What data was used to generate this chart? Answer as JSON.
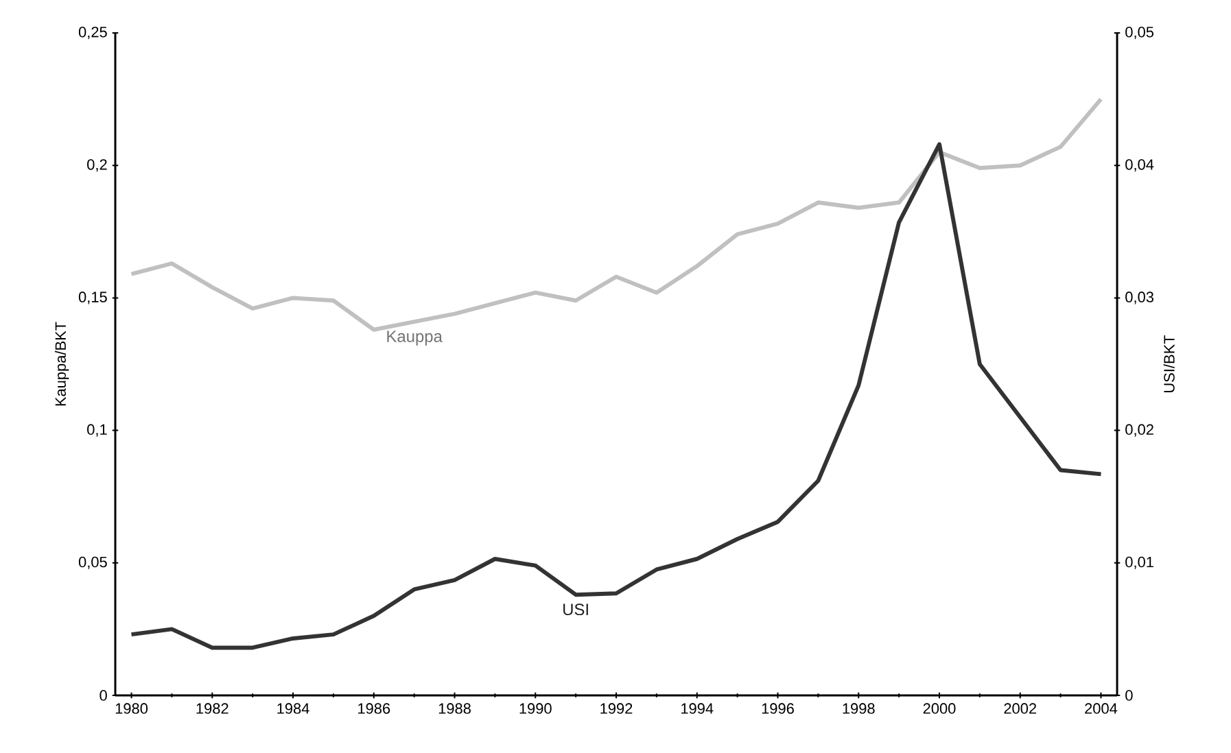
{
  "chart_data": {
    "type": "line",
    "ylabel": "Kauppa/BKT",
    "y2label": "USI/BKT",
    "x": [
      1980,
      1981,
      1982,
      1983,
      1984,
      1985,
      1986,
      1987,
      1988,
      1989,
      1990,
      1991,
      1992,
      1993,
      1994,
      1995,
      1996,
      1997,
      1998,
      1999,
      2000,
      2001,
      2002,
      2003,
      2004
    ],
    "xlim": [
      1979.6,
      2004.4
    ],
    "xticks": [
      1980,
      1982,
      1984,
      1986,
      1988,
      1990,
      1992,
      1994,
      1996,
      1998,
      2000,
      2002,
      2004
    ],
    "ylim": [
      0,
      0.25
    ],
    "yticks": [
      0,
      {
        "value": 0.05,
        "label": "0,05"
      },
      {
        "value": 0.1,
        "label": "0,1"
      },
      {
        "value": 0.15,
        "label": "0,15"
      },
      {
        "value": 0.2,
        "label": "0,2"
      },
      {
        "value": 0.25,
        "label": "0,25"
      }
    ],
    "y2lim": [
      0,
      0.05
    ],
    "y2ticks": [
      0,
      {
        "value": 0.01,
        "label": "0,01"
      },
      {
        "value": 0.02,
        "label": "0,02"
      },
      {
        "value": 0.03,
        "label": "0,03"
      },
      {
        "value": 0.04,
        "label": "0,04"
      },
      {
        "value": 0.05,
        "label": "0,05"
      }
    ],
    "grid": false,
    "legend": false,
    "marker": "none",
    "line_style": "solid",
    "series": [
      {
        "name": "Kauppa",
        "color": "#c0c0c0",
        "values": [
          0.159,
          0.163,
          0.154,
          0.146,
          0.15,
          0.149,
          0.138,
          0.141,
          0.144,
          0.148,
          0.152,
          0.149,
          0.158,
          0.152,
          0.162,
          0.174,
          0.178,
          0.186,
          0.184,
          0.186,
          0.205,
          0.199,
          0.2,
          0.207,
          0.225
        ]
      },
      {
        "name": "USI",
        "color": "#333333",
        "axis": "y2",
        "values": [
          0.0046,
          0.005,
          0.0036,
          0.0036,
          0.0043,
          0.0046,
          0.006,
          0.008,
          0.0087,
          0.0103,
          0.0098,
          0.0076,
          0.0077,
          0.0095,
          0.0103,
          0.0118,
          0.0131,
          0.0162,
          0.0234,
          0.0357,
          0.0416,
          0.025,
          0.021,
          0.017,
          0.0167
        ]
      }
    ]
  }
}
